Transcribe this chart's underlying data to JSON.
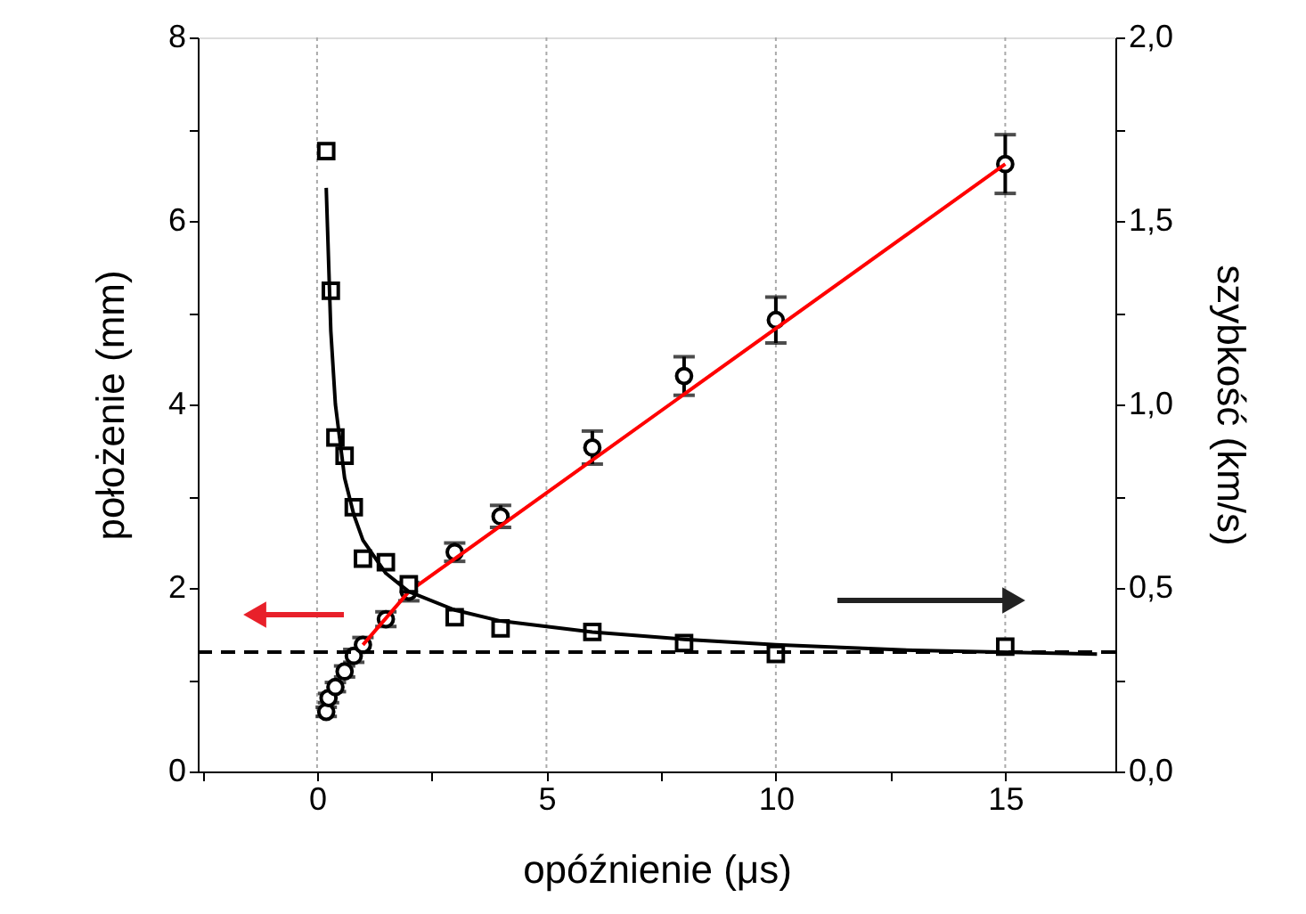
{
  "chart_data": {
    "type": "scatter",
    "xlabel": "opóźnienie (μs)",
    "ylabel": "położenie (mm)",
    "y2label": "szybkość (km/s)",
    "xlim": [
      -2.6,
      17.4
    ],
    "xticks": [
      {
        "value": -2.5,
        "label": null
      },
      0,
      {
        "value": 2.5,
        "label": null
      },
      5,
      {
        "value": 7.5,
        "label": null
      },
      10,
      {
        "value": 12.5,
        "label": null
      },
      15
    ],
    "ylim": [
      0,
      8
    ],
    "yticks": [
      0,
      {
        "value": 1,
        "label": null
      },
      2,
      {
        "value": 3,
        "label": null
      },
      4,
      {
        "value": 5,
        "label": null
      },
      6,
      {
        "value": 7,
        "label": null
      },
      8
    ],
    "y2lim": [
      0,
      2
    ],
    "y2ticks": [
      {
        "value": 0,
        "label": "0,0"
      },
      {
        "value": 0.25,
        "label": null
      },
      {
        "value": 0.5,
        "label": "0,5"
      },
      {
        "value": 0.75,
        "label": null
      },
      {
        "value": 1,
        "label": "1,0"
      },
      {
        "value": 1.25,
        "label": null
      },
      {
        "value": 1.5,
        "label": "1,5"
      },
      {
        "value": 1.75,
        "label": null
      },
      {
        "value": 2,
        "label": "2,0"
      }
    ],
    "grid": "x",
    "ref_lines": [
      {
        "axis": "y2",
        "value": 0.325,
        "color": "#000000",
        "line_style": "dashed"
      }
    ],
    "series": [
      {
        "color": "#000000",
        "marker": "circle",
        "x": [
          0.2,
          0.25,
          0.4,
          0.6,
          0.8,
          1,
          1.5,
          2,
          3,
          4,
          6,
          8,
          10,
          15
        ],
        "values": [
          0.65,
          0.8,
          0.92,
          1.09,
          1.26,
          1.38,
          1.66,
          1.96,
          2.39,
          2.78,
          3.53,
          4.31,
          4.92,
          6.62
        ],
        "errors": [
          0.05,
          0.05,
          0.05,
          0.06,
          0.07,
          0.08,
          0.08,
          0.1,
          0.1,
          0.12,
          0.18,
          0.21,
          0.25,
          0.32
        ]
      },
      {
        "type": "line",
        "color": "#ff0000",
        "marker": "none",
        "line_style": "solid",
        "x": [
          1,
          2,
          15
        ],
        "values": [
          1.38,
          1.96,
          6.62
        ]
      },
      {
        "color": "#000000",
        "marker": "square",
        "axis": "y2",
        "x": [
          0.2,
          0.3,
          0.4,
          0.6,
          0.8,
          1,
          1.5,
          2,
          3,
          4,
          6,
          8,
          10,
          15
        ],
        "values": [
          1.69,
          1.31,
          0.91,
          0.86,
          0.72,
          0.58,
          0.57,
          0.51,
          0.42,
          0.39,
          0.38,
          0.35,
          0.32,
          0.34
        ]
      },
      {
        "type": "line",
        "color": "#000000",
        "marker": "none",
        "line_style": "solid",
        "axis": "y2",
        "x": [
          0.2,
          0.3,
          0.4,
          0.6,
          0.8,
          1,
          1.5,
          2,
          3,
          4,
          6,
          8,
          10,
          13,
          17
        ],
        "values": [
          1.59,
          1.2,
          1.0,
          0.8,
          0.7,
          0.63,
          0.54,
          0.49,
          0.44,
          0.41,
          0.38,
          0.36,
          0.345,
          0.33,
          0.32
        ]
      }
    ]
  }
}
